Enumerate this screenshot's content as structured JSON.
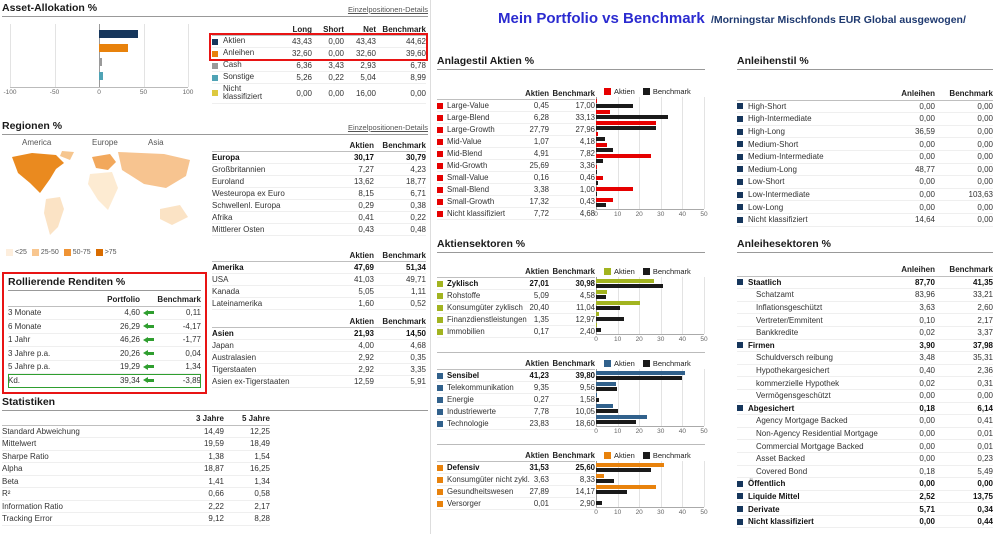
{
  "page": {
    "title": "Mein Portfolio vs Benchmark",
    "subtitle": "/Morningstar Mischfonds EUR Global ausgewogen/"
  },
  "asset_allocation": {
    "title": "Asset-Allokation %",
    "details_link": "Einzelpositionen-Details",
    "columns": [
      "Long",
      "Short",
      "Net",
      "Benchmark"
    ],
    "rows": [
      {
        "label": "Aktien",
        "color": "#16365c",
        "long": "43,43",
        "short": "0,00",
        "net": "43,43",
        "benchmark": "44,62"
      },
      {
        "label": "Anleihen",
        "color": "#e8820c",
        "long": "32,60",
        "short": "0,00",
        "net": "32,60",
        "benchmark": "39,60"
      },
      {
        "label": "Cash",
        "color": "#9a9a9a",
        "long": "6,36",
        "short": "3,43",
        "net": "2,93",
        "benchmark": "6,78"
      },
      {
        "label": "Sonstige",
        "color": "#4fa3b5",
        "long": "5,26",
        "short": "0,22",
        "net": "5,04",
        "benchmark": "8,99"
      },
      {
        "label": "Nicht klassifiziert",
        "color": "#ddc93f",
        "long": "0,00",
        "short": "0,00",
        "net": "16,00",
        "benchmark": "0,00"
      }
    ],
    "chart": {
      "type": "bar",
      "xlim": [
        -100,
        100
      ],
      "ticks": [
        -100,
        -50,
        0,
        50,
        100
      ],
      "bars": [
        {
          "value": 43.43,
          "color": "#16365c"
        },
        {
          "value": 32.6,
          "color": "#e8820c"
        },
        {
          "value": 2.93,
          "color": "#9a9a9a"
        },
        {
          "value": 5.04,
          "color": "#4fa3b5"
        }
      ]
    }
  },
  "regions": {
    "title": "Regionen %",
    "details_link": "Einzelpositionen-Details",
    "columns": [
      "Aktien",
      "Benchmark"
    ],
    "map_labels": [
      "America",
      "Europe",
      "Asia"
    ],
    "legend": [
      {
        "label": "<25",
        "color": "#fdeedd"
      },
      {
        "label": "25-50",
        "color": "#f8c68f"
      },
      {
        "label": "50-75",
        "color": "#ef9334"
      },
      {
        "label": ">75",
        "color": "#d96c00"
      }
    ],
    "europa": [
      {
        "label": "Europa",
        "bold": true,
        "aktien": "30,17",
        "benchmark": "30,79"
      },
      {
        "label": "Großbritannien",
        "aktien": "7,27",
        "benchmark": "4,23"
      },
      {
        "label": "Euroland",
        "aktien": "13,62",
        "benchmark": "18,77"
      },
      {
        "label": "Westeuropa ex Euro",
        "aktien": "8,15",
        "benchmark": "6,71"
      },
      {
        "label": "Schwellenl. Europa",
        "aktien": "0,29",
        "benchmark": "0,38"
      },
      {
        "label": "Afrika",
        "aktien": "0,41",
        "benchmark": "0,22"
      },
      {
        "label": "Mittlerer Osten",
        "aktien": "0,43",
        "benchmark": "0,48"
      }
    ],
    "amerika": [
      {
        "label": "Amerika",
        "bold": true,
        "aktien": "47,69",
        "benchmark": "51,34"
      },
      {
        "label": "USA",
        "aktien": "41,03",
        "benchmark": "49,71"
      },
      {
        "label": "Kanada",
        "aktien": "5,05",
        "benchmark": "1,11"
      },
      {
        "label": "Lateinamerika",
        "aktien": "1,60",
        "benchmark": "0,52"
      }
    ],
    "asien": [
      {
        "label": "Asien",
        "bold": true,
        "aktien": "21,93",
        "benchmark": "14,50"
      },
      {
        "label": "Japan",
        "aktien": "4,00",
        "benchmark": "4,68"
      },
      {
        "label": "Australasien",
        "aktien": "2,92",
        "benchmark": "0,35"
      },
      {
        "label": "Tigerstaaten",
        "aktien": "2,92",
        "benchmark": "3,35"
      },
      {
        "label": "Asien ex-Tigerstaaten",
        "aktien": "12,59",
        "benchmark": "5,91"
      }
    ]
  },
  "rolling_returns": {
    "title": "Rollierende Renditen %",
    "columns": [
      "Portfolio",
      "Benchmark"
    ],
    "rows": [
      {
        "label": "3 Monate",
        "portfolio": "4,60",
        "benchmark": "0,11"
      },
      {
        "label": "6 Monate",
        "portfolio": "26,29",
        "benchmark": "-4,17"
      },
      {
        "label": "1 Jahr",
        "portfolio": "46,26",
        "benchmark": "-1,77"
      },
      {
        "label": "3 Jahre p.a.",
        "portfolio": "20,26",
        "benchmark": "0,04"
      },
      {
        "label": "5 Jahre p.a.",
        "portfolio": "19,29",
        "benchmark": "1,34"
      },
      {
        "label": "Kd.",
        "portfolio": "39,34",
        "benchmark": "-3,89",
        "boxed": true
      }
    ]
  },
  "statistics": {
    "title": "Statistiken",
    "columns": [
      "3 Jahre",
      "5 Jahre"
    ],
    "rows": [
      {
        "label": "Standard Abweichung",
        "y3": "14,49",
        "y5": "12,25"
      },
      {
        "label": "Mittelwert",
        "y3": "19,59",
        "y5": "18,49"
      },
      {
        "label": "Sharpe Ratio",
        "y3": "1,38",
        "y5": "1,54"
      },
      {
        "label": "Alpha",
        "y3": "18,87",
        "y5": "16,25"
      },
      {
        "label": "Beta",
        "y3": "1,41",
        "y5": "1,34"
      },
      {
        "label": "R²",
        "y3": "0,66",
        "y5": "0,58"
      },
      {
        "label": "Information Ratio",
        "y3": "2,22",
        "y5": "2,17"
      },
      {
        "label": "Tracking Error",
        "y3": "9,12",
        "y5": "8,28"
      }
    ]
  },
  "equity_style": {
    "title": "Anlagestil Aktien %",
    "columns": [
      "Aktien",
      "Benchmark"
    ],
    "legend": {
      "a": "Aktien",
      "b": "Benchmark"
    },
    "colors": {
      "a": "#e60000",
      "b": "#1a1a1a"
    },
    "ticks": [
      0,
      10,
      20,
      30,
      40,
      50
    ],
    "max": 50,
    "rows": [
      {
        "label": "Large-Value",
        "aktien": "0,45",
        "benchmark": "17,00"
      },
      {
        "label": "Large-Blend",
        "aktien": "6,28",
        "benchmark": "33,13"
      },
      {
        "label": "Large-Growth",
        "aktien": "27,79",
        "benchmark": "27,96"
      },
      {
        "label": "Mid-Value",
        "aktien": "1,07",
        "benchmark": "4,18"
      },
      {
        "label": "Mid-Blend",
        "aktien": "4,91",
        "benchmark": "7,82"
      },
      {
        "label": "Mid-Growth",
        "aktien": "25,69",
        "benchmark": "3,36"
      },
      {
        "label": "Small-Value",
        "aktien": "0,16",
        "benchmark": "0,46"
      },
      {
        "label": "Small-Blend",
        "aktien": "3,38",
        "benchmark": "1,00"
      },
      {
        "label": "Small-Growth",
        "aktien": "17,32",
        "benchmark": "0,43"
      },
      {
        "label": "Nicht klassifiziert",
        "aktien": "7,72",
        "benchmark": "4,68"
      }
    ]
  },
  "equity_sectors": {
    "title": "Aktiensektoren %",
    "columns": [
      "Aktien",
      "Benchmark"
    ],
    "legend": {
      "a": "Aktien",
      "b": "Benchmark"
    },
    "benchmark_color": "#1a1a1a",
    "ticks": [
      0,
      10,
      20,
      30,
      40,
      50
    ],
    "max": 50,
    "groups": [
      {
        "color": "#a2b420",
        "rows": [
          {
            "label": "Zyklisch",
            "bold": true,
            "aktien": "27,01",
            "benchmark": "30,98"
          },
          {
            "label": "Rohstoffe",
            "aktien": "5,09",
            "benchmark": "4,58"
          },
          {
            "label": "Konsumgüter zyklisch",
            "aktien": "20,40",
            "benchmark": "11,04"
          },
          {
            "label": "Finanzdienstleistungen",
            "aktien": "1,35",
            "benchmark": "12,97"
          },
          {
            "label": "Immobilien",
            "aktien": "0,17",
            "benchmark": "2,40"
          }
        ]
      },
      {
        "color": "#31618c",
        "rows": [
          {
            "label": "Sensibel",
            "bold": true,
            "aktien": "41,23",
            "benchmark": "39,80"
          },
          {
            "label": "Telekommunikation",
            "aktien": "9,35",
            "benchmark": "9,56"
          },
          {
            "label": "Energie",
            "aktien": "0,27",
            "benchmark": "1,58"
          },
          {
            "label": "Industriewerte",
            "aktien": "7,78",
            "benchmark": "10,05"
          },
          {
            "label": "Technologie",
            "aktien": "23,83",
            "benchmark": "18,60"
          }
        ]
      },
      {
        "color": "#e8820c",
        "rows": [
          {
            "label": "Defensiv",
            "bold": true,
            "aktien": "31,53",
            "benchmark": "25,60"
          },
          {
            "label": "Konsumgüter nicht zykl.",
            "aktien": "3,63",
            "benchmark": "8,33"
          },
          {
            "label": "Gesundheitswesen",
            "aktien": "27,89",
            "benchmark": "14,17"
          },
          {
            "label": "Versorger",
            "aktien": "0,01",
            "benchmark": "2,90"
          }
        ]
      }
    ]
  },
  "bond_style": {
    "title": "Anleihenstil %",
    "columns": [
      "Anleihen",
      "Benchmark"
    ],
    "marker_color": "#16365c",
    "rows": [
      {
        "label": "High-Short",
        "anleihen": "0,00",
        "benchmark": "0,00"
      },
      {
        "label": "High-Intermediate",
        "anleihen": "0,00",
        "benchmark": "0,00"
      },
      {
        "label": "High-Long",
        "anleihen": "36,59",
        "benchmark": "0,00"
      },
      {
        "label": "Medium-Short",
        "anleihen": "0,00",
        "benchmark": "0,00"
      },
      {
        "label": "Medium-Intermediate",
        "anleihen": "0,00",
        "benchmark": "0,00"
      },
      {
        "label": "Medium-Long",
        "anleihen": "48,77",
        "benchmark": "0,00"
      },
      {
        "label": "Low-Short",
        "anleihen": "0,00",
        "benchmark": "0,00"
      },
      {
        "label": "Low-Intermediate",
        "anleihen": "0,00",
        "benchmark": "103,63"
      },
      {
        "label": "Low-Long",
        "anleihen": "0,00",
        "benchmark": "0,00"
      },
      {
        "label": "Nicht klassifiziert",
        "anleihen": "14,64",
        "benchmark": "0,00"
      }
    ]
  },
  "bond_sectors": {
    "title": "Anleihesektoren %",
    "columns": [
      "Anleihen",
      "Benchmark"
    ],
    "marker_color": "#16365c",
    "rows": [
      {
        "label": "Staatlich",
        "bold": true,
        "anleihen": "87,70",
        "benchmark": "41,35"
      },
      {
        "label": "Schatzamt",
        "anleihen": "83,96",
        "benchmark": "33,21"
      },
      {
        "label": "Inflationsgeschützt",
        "anleihen": "3,63",
        "benchmark": "2,60"
      },
      {
        "label": "Vertreter/Emmitent",
        "anleihen": "0,10",
        "benchmark": "2,17"
      },
      {
        "label": "Bankkredite",
        "anleihen": "0,02",
        "benchmark": "3,37"
      },
      {
        "label": "Firmen",
        "bold": true,
        "anleihen": "3,90",
        "benchmark": "37,98"
      },
      {
        "label": "Schuldversch reibung",
        "anleihen": "3,48",
        "benchmark": "35,31"
      },
      {
        "label": "Hypothekargesichert",
        "anleihen": "0,40",
        "benchmark": "2,36"
      },
      {
        "label": "kommerzielle Hypothek",
        "anleihen": "0,02",
        "benchmark": "0,31"
      },
      {
        "label": "Vermögensgeschützt",
        "anleihen": "0,00",
        "benchmark": "0,00"
      },
      {
        "label": "Abgesichert",
        "bold": true,
        "anleihen": "0,18",
        "benchmark": "6,14"
      },
      {
        "label": "Agency Mortgage Backed",
        "anleihen": "0,00",
        "benchmark": "0,41"
      },
      {
        "label": "Non-Agency Residential Mortgage",
        "anleihen": "0,00",
        "benchmark": "0,01"
      },
      {
        "label": "Commercial Mortgage Backed",
        "anleihen": "0,00",
        "benchmark": "0,01"
      },
      {
        "label": "Asset Backed",
        "anleihen": "0,00",
        "benchmark": "0,23"
      },
      {
        "label": "Covered Bond",
        "anleihen": "0,18",
        "benchmark": "5,49"
      },
      {
        "label": "Öffentlich",
        "bold": true,
        "anleihen": "0,00",
        "benchmark": "0,00"
      },
      {
        "label": "Liquide Mittel",
        "bold": true,
        "anleihen": "2,52",
        "benchmark": "13,75"
      },
      {
        "label": "Derivate",
        "bold": true,
        "anleihen": "5,71",
        "benchmark": "0,34"
      },
      {
        "label": "Nicht klassifiziert",
        "bold": true,
        "anleihen": "0,00",
        "benchmark": "0,44"
      }
    ]
  }
}
